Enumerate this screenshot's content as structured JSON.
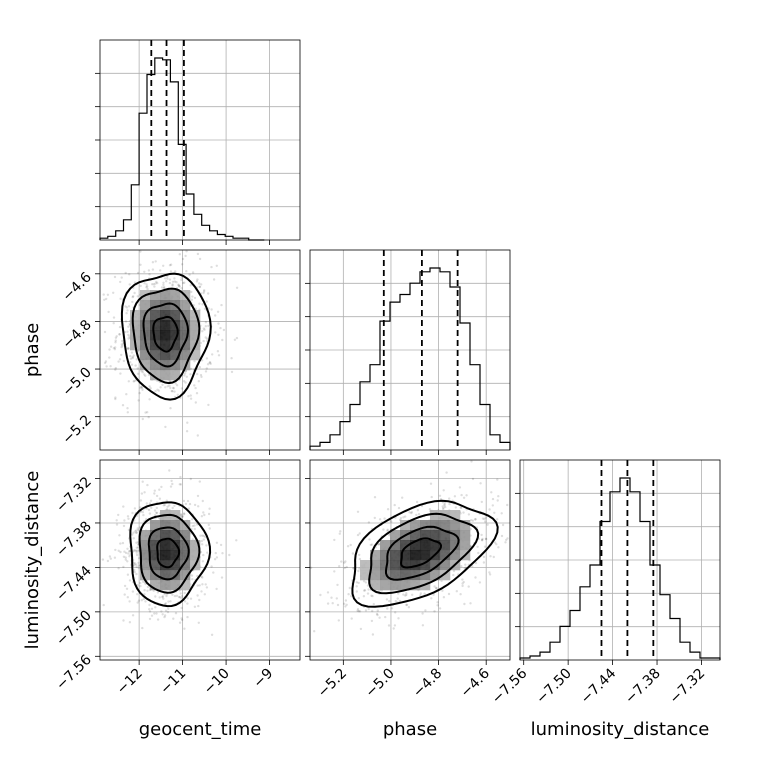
{
  "chart_data": {
    "type": "corner",
    "parameters": [
      {
        "name": "geocent_time",
        "label": "geocent_time",
        "range": [
          -12.9,
          -8.3
        ],
        "ticks": [
          -12,
          -11,
          -10,
          -9
        ],
        "tick_labels": [
          "−12",
          "−11",
          "−10",
          "−9"
        ],
        "quantiles": [
          -11.72,
          -11.37,
          -10.97
        ],
        "peak": -11.4
      },
      {
        "name": "phase",
        "label": "phase",
        "range": [
          -5.34,
          -4.5
        ],
        "ticks": [
          -5.2,
          -5.0,
          -4.8,
          -4.6
        ],
        "tick_labels": [
          "−5.2",
          "−5.0",
          "−4.8",
          "−4.6"
        ],
        "quantiles": [
          -5.03,
          -4.87,
          -4.72
        ],
        "peak": -4.85
      },
      {
        "name": "luminosity_distance",
        "label": "luminosity_distance",
        "range": [
          -7.565,
          -7.295
        ],
        "ticks": [
          -7.56,
          -7.5,
          -7.44,
          -7.38,
          -7.32
        ],
        "tick_labels": [
          "−7.56",
          "−7.50",
          "−7.44",
          "−7.38",
          "−7.32"
        ],
        "quantiles": [
          -7.455,
          -7.42,
          -7.385
        ],
        "peak": -7.425
      }
    ],
    "histograms": [
      {
        "parameter": "geocent_time",
        "bin_edges": [
          -12.9,
          -12.72,
          -12.54,
          -12.36,
          -12.18,
          -12.0,
          -11.82,
          -11.64,
          -11.46,
          -11.28,
          -11.1,
          -10.92,
          -10.74,
          -10.56,
          -10.38,
          -10.2,
          -10.02,
          -9.84,
          -9.66,
          -9.48,
          -9.3,
          -9.12
        ],
        "counts": [
          1,
          2,
          5,
          11,
          30,
          69,
          90,
          99,
          98,
          86,
          52,
          25,
          14,
          8,
          5,
          3,
          2,
          1,
          1,
          0,
          0
        ]
      },
      {
        "parameter": "phase",
        "bin_edges": [
          -5.34,
          -5.298,
          -5.256,
          -5.214,
          -5.172,
          -5.13,
          -5.088,
          -5.046,
          -5.004,
          -4.962,
          -4.92,
          -4.878,
          -4.836,
          -4.794,
          -4.752,
          -4.71,
          -4.668,
          -4.626,
          -4.584,
          -4.542,
          -4.5
        ],
        "counts": [
          2,
          4,
          8,
          15,
          24,
          36,
          45,
          68,
          78,
          82,
          88,
          94,
          96,
          94,
          86,
          67,
          45,
          24,
          8,
          4
        ]
      },
      {
        "parameter": "luminosity_distance",
        "bin_edges": [
          -7.565,
          -7.5515,
          -7.538,
          -7.5245,
          -7.511,
          -7.4975,
          -7.484,
          -7.4705,
          -7.457,
          -7.4435,
          -7.43,
          -7.4165,
          -7.403,
          -7.3895,
          -7.376,
          -7.3625,
          -7.349,
          -7.3355,
          -7.322,
          -7.3085,
          -7.295
        ],
        "counts": [
          1,
          2,
          4,
          9,
          17,
          25,
          37,
          48,
          70,
          85,
          92,
          85,
          70,
          48,
          33,
          21,
          9,
          4,
          1,
          1
        ]
      }
    ],
    "pairs": [
      {
        "x": "geocent_time",
        "y": "phase",
        "center": [
          -11.4,
          -4.85
        ],
        "spread": [
          0.5,
          0.13
        ]
      },
      {
        "x": "geocent_time",
        "y": "luminosity_distance",
        "center": [
          -11.35,
          -7.42
        ],
        "spread": [
          0.45,
          0.035
        ]
      },
      {
        "x": "phase",
        "y": "luminosity_distance",
        "center": [
          -4.88,
          -7.42
        ],
        "spread": [
          0.15,
          0.035
        ]
      }
    ]
  }
}
